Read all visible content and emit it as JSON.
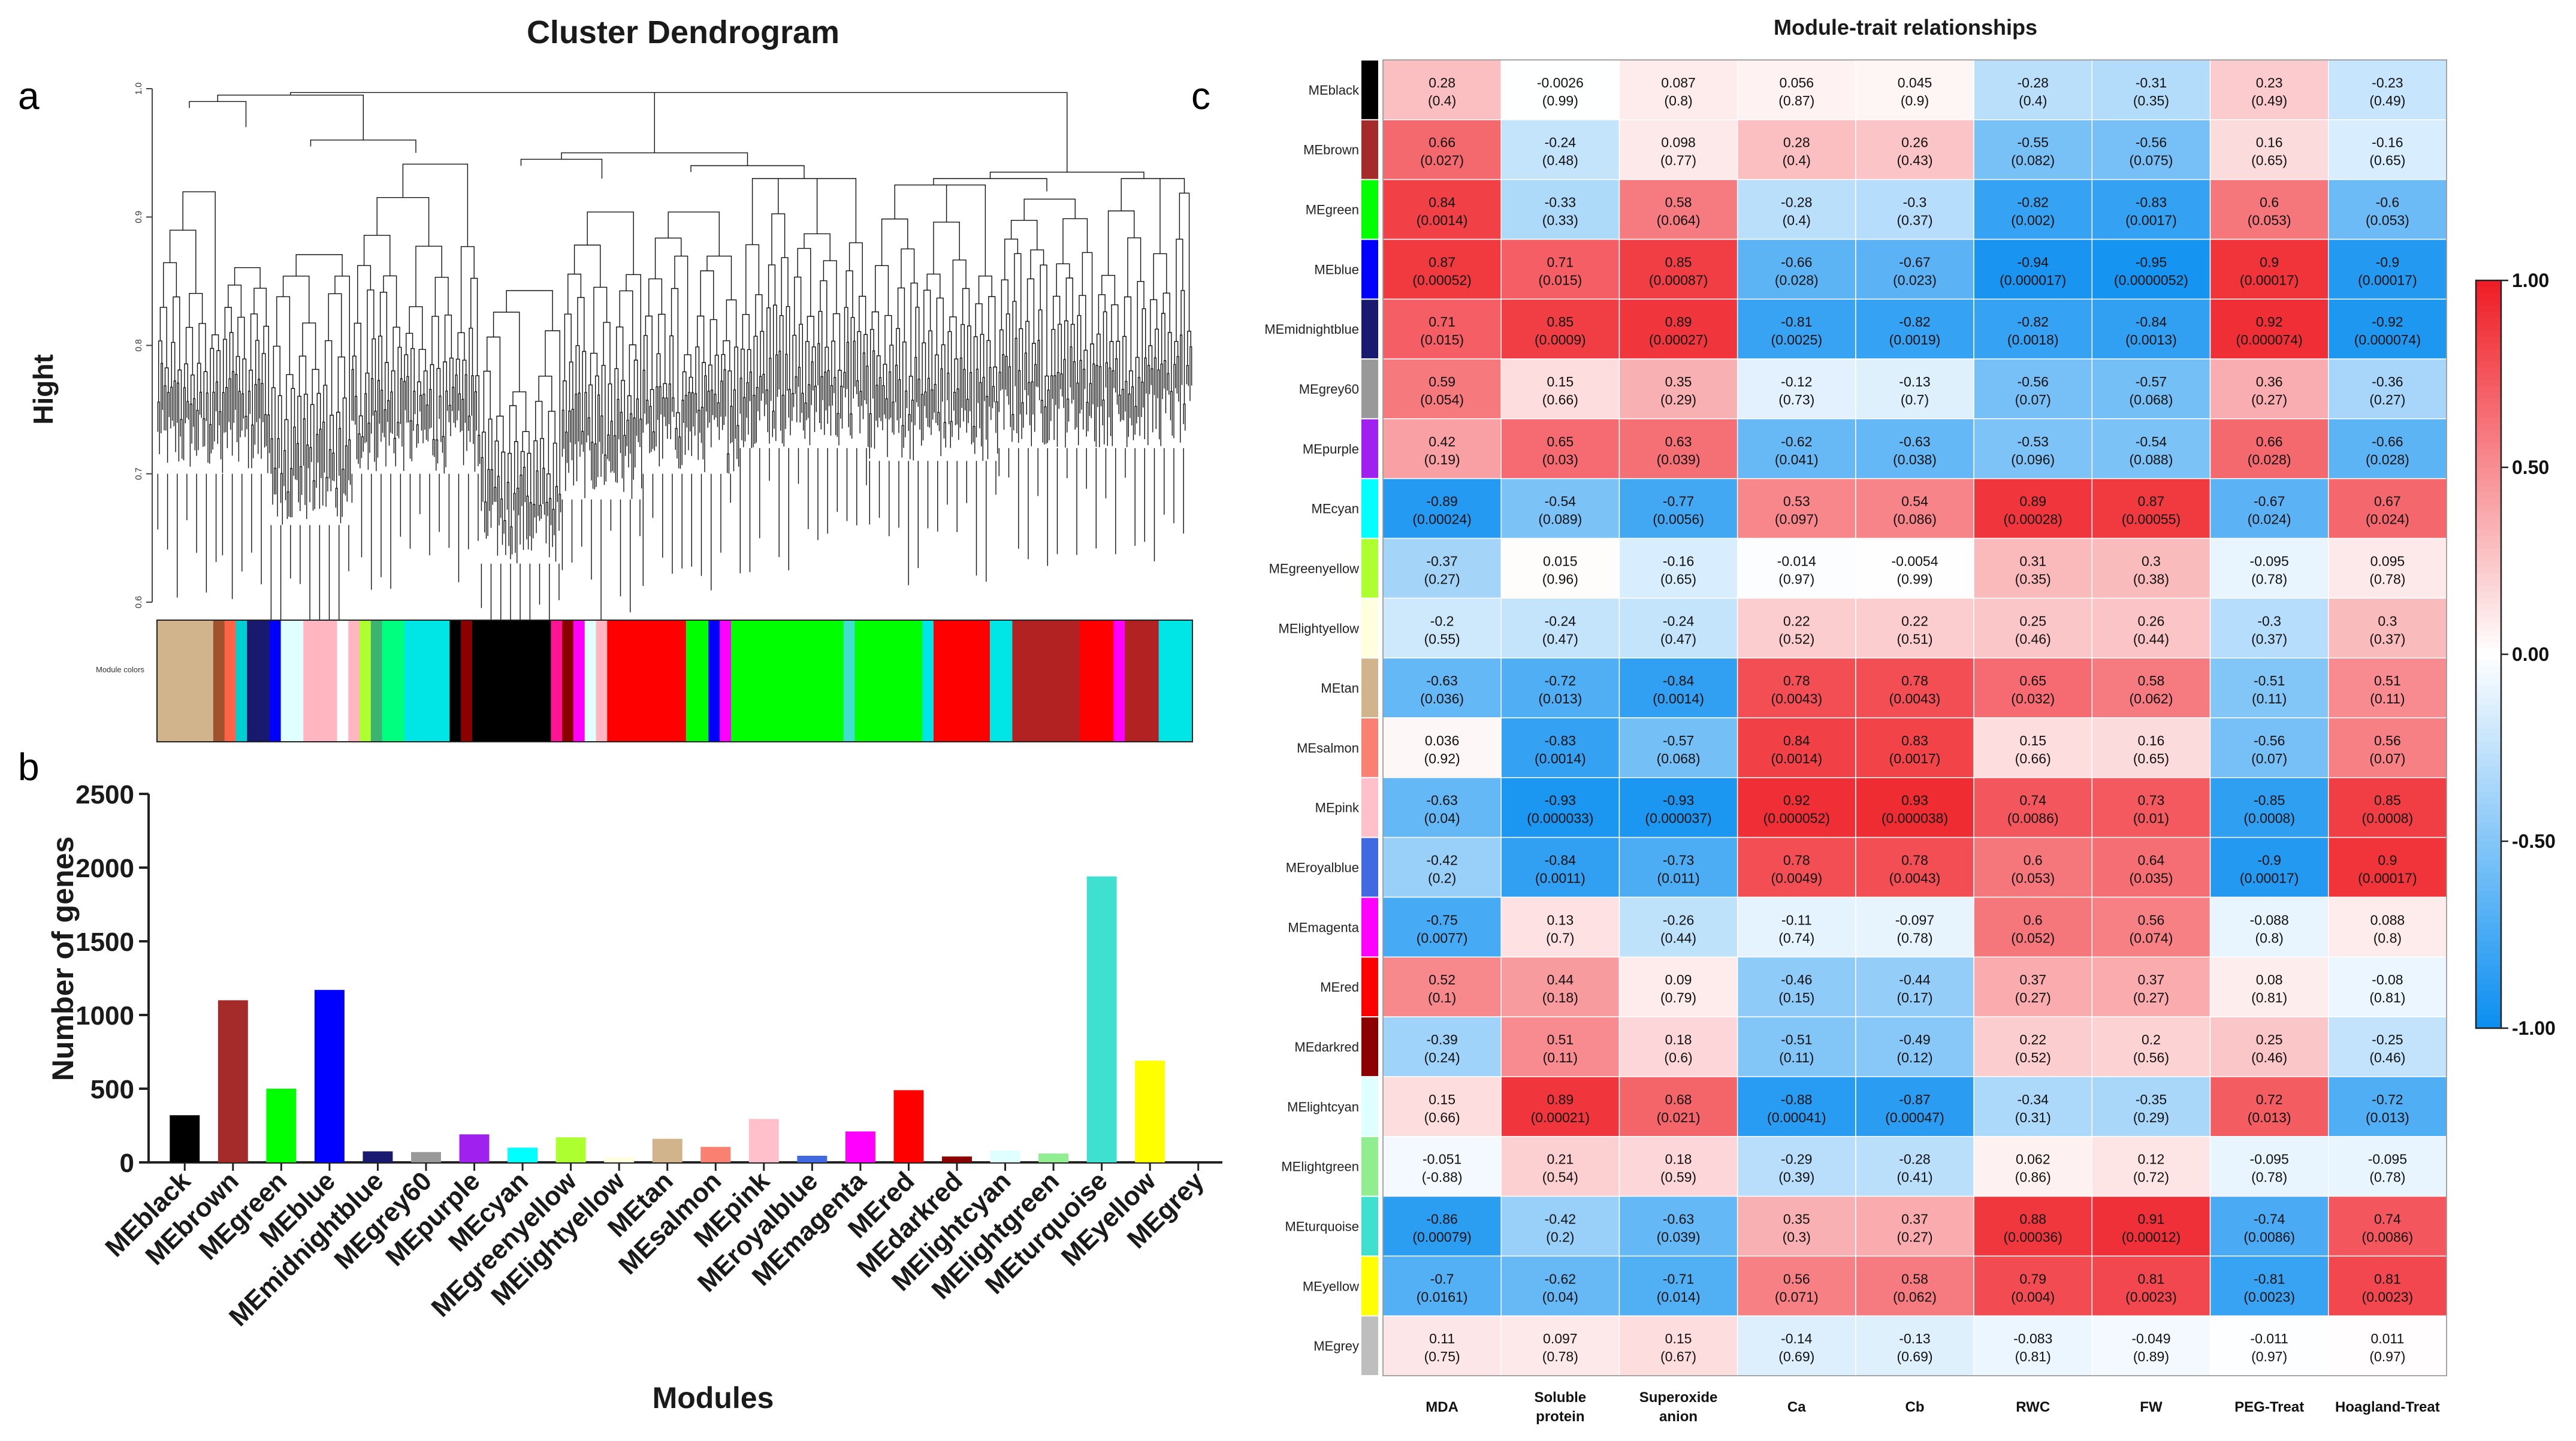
{
  "panels": {
    "a_label": "a",
    "b_label": "b",
    "c_label": "c"
  },
  "chart_data": [
    {
      "type": "dendrogram",
      "title": "Cluster Dendrogram",
      "ylabel": "Hight",
      "ylim": [
        0.6,
        1.0
      ],
      "yticks": [
        "0.6",
        "0.7",
        "0.8",
        "0.9",
        "1.0"
      ],
      "color_bar_label": "Module colors",
      "color_bar_segments": [
        {
          "color": "#d2b48c",
          "weight": 5
        },
        {
          "color": "#a0522d",
          "weight": 1
        },
        {
          "color": "#ff6347",
          "weight": 1
        },
        {
          "color": "#00ced1",
          "weight": 1
        },
        {
          "color": "#191970",
          "weight": 2
        },
        {
          "color": "#0000ff",
          "weight": 1
        },
        {
          "color": "#e0ffff",
          "weight": 2
        },
        {
          "color": "#ffb6c1",
          "weight": 3
        },
        {
          "color": "#ffffff",
          "weight": 1
        },
        {
          "color": "#ffb6c1",
          "weight": 1
        },
        {
          "color": "#adff2f",
          "weight": 1
        },
        {
          "color": "#3cb371",
          "weight": 1
        },
        {
          "color": "#00ff7f",
          "weight": 2
        },
        {
          "color": "#00e5e5",
          "weight": 4
        },
        {
          "color": "#000000",
          "weight": 1
        },
        {
          "color": "#8b0000",
          "weight": 1
        },
        {
          "color": "#000000",
          "weight": 7
        },
        {
          "color": "#ff1493",
          "weight": 1
        },
        {
          "color": "#8b0000",
          "weight": 1
        },
        {
          "color": "#ff00ff",
          "weight": 1
        },
        {
          "color": "#e0ffff",
          "weight": 1
        },
        {
          "color": "#ffb6c1",
          "weight": 1
        },
        {
          "color": "#ff0000",
          "weight": 7
        },
        {
          "color": "#00ff00",
          "weight": 2
        },
        {
          "color": "#0000ff",
          "weight": 1
        },
        {
          "color": "#ff00ff",
          "weight": 1
        },
        {
          "color": "#00ff00",
          "weight": 10
        },
        {
          "color": "#40e0d0",
          "weight": 1
        },
        {
          "color": "#00ff00",
          "weight": 6
        },
        {
          "color": "#00e5e5",
          "weight": 1
        },
        {
          "color": "#ff0000",
          "weight": 5
        },
        {
          "color": "#00e5e5",
          "weight": 2
        },
        {
          "color": "#b22222",
          "weight": 6
        },
        {
          "color": "#ff0000",
          "weight": 3
        },
        {
          "color": "#ff00ff",
          "weight": 1
        },
        {
          "color": "#b22222",
          "weight": 3
        },
        {
          "color": "#00e5e5",
          "weight": 3
        }
      ]
    },
    {
      "type": "bar",
      "xlabel": "Modules",
      "ylabel": "Number of genes",
      "ylim": [
        0,
        2500
      ],
      "yticks": [
        0,
        500,
        1000,
        1500,
        2000,
        2500
      ],
      "categories": [
        "MEblack",
        "MEbrown",
        "MEgreen",
        "MEblue",
        "MEmidnightblue",
        "MEgrey60",
        "MEpurple",
        "MEcyan",
        "MEgreenyellow",
        "MElightyellow",
        "MEtan",
        "MEsalmon",
        "MEpink",
        "MEroyalblue",
        "MEmagenta",
        "MEred",
        "MEdarkred",
        "MElightcyan",
        "MElightgreen",
        "MEturquoise",
        "MEyellow",
        "MEgrey"
      ],
      "values": [
        320,
        1100,
        500,
        1170,
        75,
        70,
        190,
        100,
        170,
        35,
        160,
        105,
        295,
        45,
        210,
        490,
        40,
        80,
        60,
        1940,
        690,
        0
      ],
      "colors": [
        "#000000",
        "#a52a2a",
        "#00ff00",
        "#0000ff",
        "#191970",
        "#999999",
        "#a020f0",
        "#00ffff",
        "#adff2f",
        "#ffffe0",
        "#d2b48c",
        "#fa8072",
        "#ffc0cb",
        "#4169e1",
        "#ff00ff",
        "#ff0000",
        "#8b0000",
        "#e0ffff",
        "#90ee90",
        "#40e0d0",
        "#ffff00",
        "#bebebe"
      ]
    },
    {
      "type": "heatmap",
      "title": "Module-trait relationships",
      "rows": [
        "MEblack",
        "MEbrown",
        "MEgreen",
        "MEblue",
        "MEmidnightblue",
        "MEgrey60",
        "MEpurple",
        "MEcyan",
        "MEgreenyellow",
        "MElightyellow",
        "MEtan",
        "MEsalmon",
        "MEpink",
        "MEroyalblue",
        "MEmagenta",
        "MEred",
        "MEdarkred",
        "MElightcyan",
        "MElightgreen",
        "MEturquoise",
        "MEyellow",
        "MEgrey"
      ],
      "row_colors": [
        "#000000",
        "#a52a2a",
        "#00ff00",
        "#0000ff",
        "#191970",
        "#999999",
        "#a020f0",
        "#00ffff",
        "#adff2f",
        "#ffffe0",
        "#d2b48c",
        "#fa8072",
        "#ffc0cb",
        "#4169e1",
        "#ff00ff",
        "#ff0000",
        "#8b0000",
        "#e0ffff",
        "#90ee90",
        "#40e0d0",
        "#ffff00",
        "#bebebe"
      ],
      "columns": [
        "MDA",
        "Soluble protein",
        "Superoxide anion",
        "Ca",
        "Cb",
        "RWC",
        "FW",
        "PEG-Treat",
        "Hoagland-Treat"
      ],
      "values": [
        [
          0.28,
          -0.0026,
          0.087,
          0.056,
          0.045,
          -0.28,
          -0.31,
          0.23,
          -0.23
        ],
        [
          0.66,
          -0.24,
          0.098,
          0.28,
          0.26,
          -0.55,
          -0.56,
          0.16,
          -0.16
        ],
        [
          0.84,
          -0.33,
          0.58,
          -0.28,
          -0.3,
          -0.82,
          -0.83,
          0.6,
          -0.6
        ],
        [
          0.87,
          0.71,
          0.85,
          -0.66,
          -0.67,
          -0.94,
          -0.95,
          0.9,
          -0.9
        ],
        [
          0.71,
          0.85,
          0.89,
          -0.81,
          -0.82,
          -0.82,
          -0.84,
          0.92,
          -0.92
        ],
        [
          0.59,
          0.15,
          0.35,
          -0.12,
          -0.13,
          -0.56,
          -0.57,
          0.36,
          -0.36
        ],
        [
          0.42,
          0.65,
          0.63,
          -0.62,
          -0.63,
          -0.53,
          -0.54,
          0.66,
          -0.66
        ],
        [
          -0.89,
          -0.54,
          -0.77,
          0.53,
          0.54,
          0.89,
          0.87,
          -0.67,
          0.67
        ],
        [
          -0.37,
          0.015,
          -0.16,
          -0.014,
          -0.0054,
          0.31,
          0.3,
          -0.095,
          0.095
        ],
        [
          -0.2,
          -0.24,
          -0.24,
          0.22,
          0.22,
          0.25,
          0.26,
          -0.3,
          0.3
        ],
        [
          -0.63,
          -0.72,
          -0.84,
          0.78,
          0.78,
          0.65,
          0.58,
          -0.51,
          0.51
        ],
        [
          0.036,
          -0.83,
          -0.57,
          0.84,
          0.83,
          0.15,
          0.16,
          -0.56,
          0.56
        ],
        [
          -0.63,
          -0.93,
          -0.93,
          0.92,
          0.93,
          0.74,
          0.73,
          -0.85,
          0.85
        ],
        [
          -0.42,
          -0.84,
          -0.73,
          0.78,
          0.78,
          0.6,
          0.64,
          -0.9,
          0.9
        ],
        [
          -0.75,
          0.13,
          -0.26,
          -0.11,
          -0.097,
          0.6,
          0.56,
          -0.088,
          0.088
        ],
        [
          0.52,
          0.44,
          0.09,
          -0.46,
          -0.44,
          0.37,
          0.37,
          0.08,
          -0.08
        ],
        [
          -0.39,
          0.51,
          0.18,
          -0.51,
          -0.49,
          0.22,
          0.2,
          0.25,
          -0.25
        ],
        [
          0.15,
          0.89,
          0.68,
          -0.88,
          -0.87,
          -0.34,
          -0.35,
          0.72,
          -0.72
        ],
        [
          -0.051,
          0.21,
          0.18,
          -0.29,
          -0.28,
          0.062,
          0.12,
          -0.095,
          -0.095
        ],
        [
          -0.86,
          -0.42,
          -0.63,
          0.35,
          0.37,
          0.88,
          0.91,
          -0.74,
          0.74
        ],
        [
          -0.7,
          -0.62,
          -0.71,
          0.56,
          0.58,
          0.79,
          0.81,
          -0.81,
          0.81
        ],
        [
          0.11,
          0.097,
          0.15,
          -0.14,
          -0.13,
          -0.083,
          -0.049,
          -0.011,
          0.011
        ]
      ],
      "labels": [
        [
          "0.28",
          "-0.0026",
          "0.087",
          "0.056",
          "0.045",
          "-0.28",
          "-0.31",
          "0.23",
          "-0.23"
        ],
        [
          "0.66",
          "-0.24",
          "0.098",
          "0.28",
          "0.26",
          "-0.55",
          "-0.56",
          "0.16",
          "-0.16"
        ],
        [
          "0.84",
          "-0.33",
          "0.58",
          "-0.28",
          "-0.3",
          "-0.82",
          "-0.83",
          "0.6",
          "-0.6"
        ],
        [
          "0.87",
          "0.71",
          "0.85",
          "-0.66",
          "-0.67",
          "-0.94",
          "-0.95",
          "0.9",
          "-0.9"
        ],
        [
          "0.71",
          "0.85",
          "0.89",
          "-0.81",
          "-0.82",
          "-0.82",
          "-0.84",
          "0.92",
          "-0.92"
        ],
        [
          "0.59",
          "0.15",
          "0.35",
          "-0.12",
          "-0.13",
          "-0.56",
          "-0.57",
          "0.36",
          "-0.36"
        ],
        [
          "0.42",
          "0.65",
          "0.63",
          "-0.62",
          "-0.63",
          "-0.53",
          "-0.54",
          "0.66",
          "-0.66"
        ],
        [
          "-0.89",
          "-0.54",
          "-0.77",
          "0.53",
          "0.54",
          "0.89",
          "0.87",
          "-0.67",
          "0.67"
        ],
        [
          "-0.37",
          "0.015",
          "-0.16",
          "-0.014",
          "-0.0054",
          "0.31",
          "0.3",
          "-0.095",
          "0.095"
        ],
        [
          "-0.2",
          "-0.24",
          "-0.24",
          "0.22",
          "0.22",
          "0.25",
          "0.26",
          "-0.3",
          "0.3"
        ],
        [
          "-0.63",
          "-0.72",
          "-0.84",
          "0.78",
          "0.78",
          "0.65",
          "0.58",
          "-0.51",
          "0.51"
        ],
        [
          "0.036",
          "-0.83",
          "-0.57",
          "0.84",
          "0.83",
          "0.15",
          "0.16",
          "-0.56",
          "0.56"
        ],
        [
          "-0.63",
          "-0.93",
          "-0.93",
          "0.92",
          "0.93",
          "0.74",
          "0.73",
          "-0.85",
          "0.85"
        ],
        [
          "-0.42",
          "-0.84",
          "-0.73",
          "0.78",
          "0.78",
          "0.6",
          "0.64",
          "-0.9",
          "0.9"
        ],
        [
          "-0.75",
          "0.13",
          "-0.26",
          "-0.11",
          "-0.097",
          "0.6",
          "0.56",
          "-0.088",
          "0.088"
        ],
        [
          "0.52",
          "0.44",
          "0.09",
          "-0.46",
          "-0.44",
          "0.37",
          "0.37",
          "0.08",
          "-0.08"
        ],
        [
          "-0.39",
          "0.51",
          "0.18",
          "-0.51",
          "-0.49",
          "0.22",
          "0.2",
          "0.25",
          "-0.25"
        ],
        [
          "0.15",
          "0.89",
          "0.68",
          "-0.88",
          "-0.87",
          "-0.34",
          "-0.35",
          "0.72",
          "-0.72"
        ],
        [
          "-0.051",
          "0.21",
          "0.18",
          "-0.29",
          "-0.28",
          "0.062",
          "0.12",
          "-0.095",
          "-0.095"
        ],
        [
          "-0.86",
          "-0.42",
          "-0.63",
          "0.35",
          "0.37",
          "0.88",
          "0.91",
          "-0.74",
          "0.74"
        ],
        [
          "-0.7",
          "-0.62",
          "-0.71",
          "0.56",
          "0.58",
          "0.79",
          "0.81",
          "-0.81",
          "0.81"
        ],
        [
          "0.11",
          "0.097",
          "0.15",
          "-0.14",
          "-0.13",
          "-0.083",
          "-0.049",
          "-0.011",
          "0.011"
        ]
      ],
      "pvalues": [
        [
          "(0.4)",
          "(0.99)",
          "(0.8)",
          "(0.87)",
          "(0.9)",
          "(0.4)",
          "(0.35)",
          "(0.49)",
          "(0.49)"
        ],
        [
          "(0.027)",
          "(0.48)",
          "(0.77)",
          "(0.4)",
          "(0.43)",
          "(0.082)",
          "(0.075)",
          "(0.65)",
          "(0.65)"
        ],
        [
          "(0.0014)",
          "(0.33)",
          "(0.064)",
          "(0.4)",
          "(0.37)",
          "(0.002)",
          "(0.0017)",
          "(0.053)",
          "(0.053)"
        ],
        [
          "(0.00052)",
          "(0.015)",
          "(0.00087)",
          "(0.028)",
          "(0.023)",
          "(0.000017)",
          "(0.0000052)",
          "(0.00017)",
          "(0.00017)"
        ],
        [
          "(0.015)",
          "(0.0009)",
          "(0.00027)",
          "(0.0025)",
          "(0.0019)",
          "(0.0018)",
          "(0.0013)",
          "(0.000074)",
          "(0.000074)"
        ],
        [
          "(0.054)",
          "(0.66)",
          "(0.29)",
          "(0.73)",
          "(0.7)",
          "(0.07)",
          "(0.068)",
          "(0.27)",
          "(0.27)"
        ],
        [
          "(0.19)",
          "(0.03)",
          "(0.039)",
          "(0.041)",
          "(0.038)",
          "(0.096)",
          "(0.088)",
          "(0.028)",
          "(0.028)"
        ],
        [
          "(0.00024)",
          "(0.089)",
          "(0.0056)",
          "(0.097)",
          "(0.086)",
          "(0.00028)",
          "(0.00055)",
          "(0.024)",
          "(0.024)"
        ],
        [
          "(0.27)",
          "(0.96)",
          "(0.65)",
          "(0.97)",
          "(0.99)",
          "(0.35)",
          "(0.38)",
          "(0.78)",
          "(0.78)"
        ],
        [
          "(0.55)",
          "(0.47)",
          "(0.47)",
          "(0.52)",
          "(0.51)",
          "(0.46)",
          "(0.44)",
          "(0.37)",
          "(0.37)"
        ],
        [
          "(0.036)",
          "(0.013)",
          "(0.0014)",
          "(0.0043)",
          "(0.0043)",
          "(0.032)",
          "(0.062)",
          "(0.11)",
          "(0.11)"
        ],
        [
          "(0.92)",
          "(0.0014)",
          "(0.068)",
          "(0.0014)",
          "(0.0017)",
          "(0.66)",
          "(0.65)",
          "(0.07)",
          "(0.07)"
        ],
        [
          "(0.04)",
          "(0.000033)",
          "(0.000037)",
          "(0.000052)",
          "(0.000038)",
          "(0.0086)",
          "(0.01)",
          "(0.0008)",
          "(0.0008)"
        ],
        [
          "(0.2)",
          "(0.0011)",
          "(0.011)",
          "(0.0049)",
          "(0.0043)",
          "(0.053)",
          "(0.035)",
          "(0.00017)",
          "(0.00017)"
        ],
        [
          "(0.0077)",
          "(0.7)",
          "(0.44)",
          "(0.74)",
          "(0.78)",
          "(0.052)",
          "(0.074)",
          "(0.8)",
          "(0.8)"
        ],
        [
          "(0.1)",
          "(0.18)",
          "(0.79)",
          "(0.15)",
          "(0.17)",
          "(0.27)",
          "(0.27)",
          "(0.81)",
          "(0.81)"
        ],
        [
          "(0.24)",
          "(0.11)",
          "(0.6)",
          "(0.11)",
          "(0.12)",
          "(0.52)",
          "(0.56)",
          "(0.46)",
          "(0.46)"
        ],
        [
          "(0.66)",
          "(0.00021)",
          "(0.021)",
          "(0.00041)",
          "(0.00047)",
          "(0.31)",
          "(0.29)",
          "(0.013)",
          "(0.013)"
        ],
        [
          "(-0.88)",
          "(0.54)",
          "(0.59)",
          "(0.39)",
          "(0.41)",
          "(0.86)",
          "(0.72)",
          "(0.78)",
          "(0.78)"
        ],
        [
          "(0.00079)",
          "(0.2)",
          "(0.039)",
          "(0.3)",
          "(0.27)",
          "(0.00036)",
          "(0.00012)",
          "(0.0086)",
          "(0.0086)"
        ],
        [
          "(0.0161)",
          "(0.04)",
          "(0.014)",
          "(0.071)",
          "(0.062)",
          "(0.004)",
          "(0.0023)",
          "(0.0023)",
          "(0.0023)"
        ],
        [
          "(0.75)",
          "(0.78)",
          "(0.67)",
          "(0.69)",
          "(0.69)",
          "(0.81)",
          "(0.89)",
          "(0.97)",
          "(0.97)"
        ]
      ],
      "colorbar": {
        "range": [
          -1,
          1
        ],
        "ticks": [
          1.0,
          0.5,
          0.0,
          -0.5,
          -1.0
        ],
        "tick_labels": [
          "1.00",
          "0.50",
          "0.00",
          "-0.50",
          "-1.00"
        ],
        "low_color": "#0a8ef0",
        "mid_color": "#ffffff",
        "high_color": "#ef1c24"
      }
    }
  ]
}
